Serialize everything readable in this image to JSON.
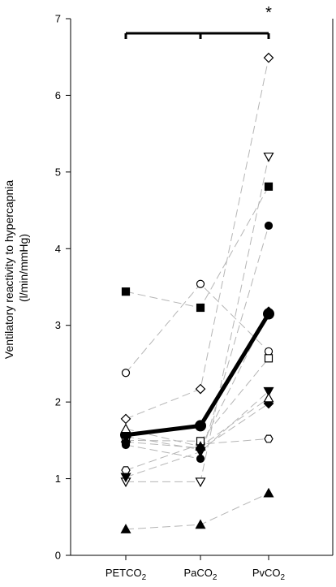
{
  "chart_data": {
    "type": "line",
    "title": "",
    "ylabel_line1": "Ventilatory reactivity to hypercapnia",
    "ylabel_line2": "(l/min/mmHg)",
    "xlabel": "",
    "ylim": [
      0,
      7
    ],
    "yticks": [
      "0",
      "1",
      "2",
      "3",
      "4",
      "5",
      "6",
      "7"
    ],
    "categories": [
      {
        "main": "PETCO",
        "sub": "2"
      },
      {
        "main": "PaCO",
        "sub": "2"
      },
      {
        "main": "PvCO",
        "sub": "2"
      }
    ],
    "significance": {
      "marker": "*",
      "category_index": 2
    },
    "mean": {
      "values": [
        1.57,
        1.69,
        3.15
      ]
    },
    "subjects": [
      {
        "marker": "square-filled",
        "values": [
          3.44,
          3.23,
          4.81
        ]
      },
      {
        "marker": "circle-open",
        "values": [
          2.38,
          3.54,
          2.66
        ]
      },
      {
        "marker": "diamond-open",
        "values": [
          1.78,
          2.17,
          6.49
        ]
      },
      {
        "marker": "circle-filled",
        "values": [
          1.44,
          1.26,
          4.3
        ]
      },
      {
        "marker": "triangle-down-open",
        "values": [
          0.96,
          0.96,
          5.2
        ]
      },
      {
        "marker": "hexagon-open",
        "values": [
          1.11,
          1.45,
          1.52
        ]
      },
      {
        "marker": "square-open",
        "values": [
          1.5,
          1.49,
          2.57
        ]
      },
      {
        "marker": "diamond-filled",
        "values": [
          1.55,
          1.38,
          1.98
        ]
      },
      {
        "marker": "triangle-down-filled",
        "values": [
          1.02,
          1.35,
          2.14
        ]
      },
      {
        "marker": "triangle-up-open",
        "values": [
          1.65,
          1.42,
          2.05
        ]
      },
      {
        "marker": "diamond-filled",
        "values": [
          1.48,
          1.4,
          3.18
        ]
      },
      {
        "marker": "triangle-up-filled",
        "values": [
          0.34,
          0.4,
          0.81
        ]
      }
    ]
  }
}
